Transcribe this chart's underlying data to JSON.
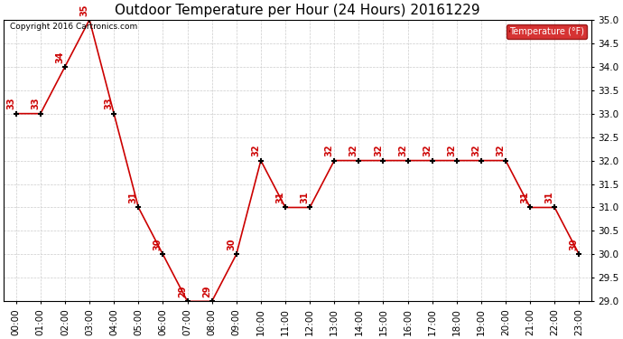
{
  "title": "Outdoor Temperature per Hour (24 Hours) 20161229",
  "copyright_text": "Copyright 2016 Cartronics.com",
  "legend_label": "Temperature (°F)",
  "hours": [
    "00:00",
    "01:00",
    "02:00",
    "03:00",
    "04:00",
    "05:00",
    "06:00",
    "07:00",
    "08:00",
    "09:00",
    "10:00",
    "11:00",
    "12:00",
    "13:00",
    "14:00",
    "15:00",
    "16:00",
    "17:00",
    "18:00",
    "19:00",
    "20:00",
    "21:00",
    "22:00",
    "23:00"
  ],
  "temperatures": [
    33,
    33,
    34,
    35,
    33,
    31,
    30,
    29,
    29,
    30,
    32,
    31,
    31,
    32,
    32,
    32,
    32,
    32,
    32,
    32,
    32,
    31,
    31,
    30
  ],
  "ylim": [
    29.0,
    35.0
  ],
  "yticks": [
    29.0,
    29.5,
    30.0,
    30.5,
    31.0,
    31.5,
    32.0,
    32.5,
    33.0,
    33.5,
    34.0,
    34.5,
    35.0
  ],
  "line_color": "#cc0000",
  "marker_color": "#000000",
  "label_color": "#cc0000",
  "title_color": "#000000",
  "background_color": "#ffffff",
  "grid_color": "#cccccc",
  "legend_bg": "#cc0000",
  "legend_text_color": "#ffffff",
  "title_fontsize": 11,
  "label_fontsize": 7,
  "copyright_fontsize": 6.5,
  "tick_fontsize": 7.5
}
